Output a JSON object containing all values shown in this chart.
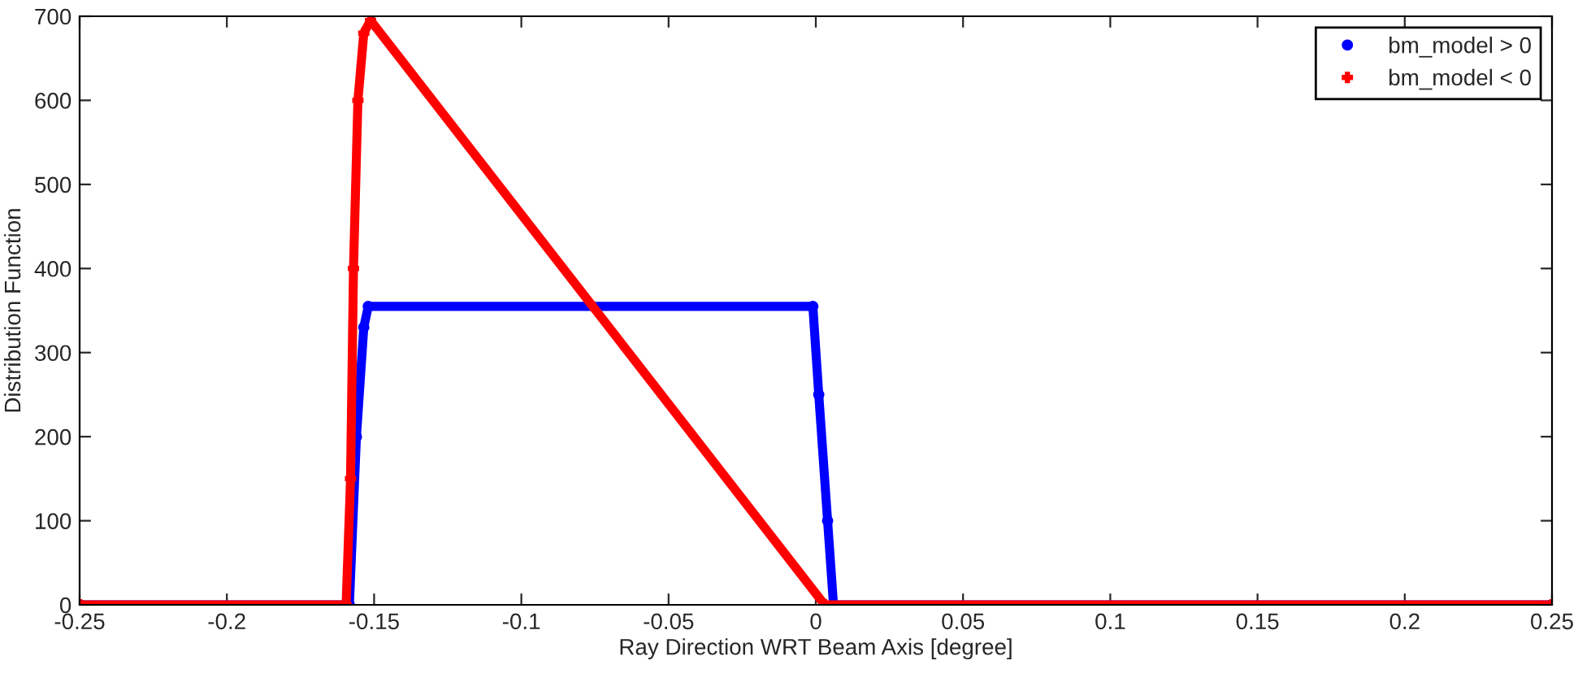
{
  "chart_data": {
    "type": "line",
    "xlabel": "Ray Direction WRT Beam Axis [degree]",
    "ylabel": "Distribution Function",
    "xlim": [
      -0.25,
      0.25
    ],
    "xticks": [
      -0.25,
      -0.2,
      -0.15,
      -0.1,
      -0.05,
      0,
      0.05,
      0.1,
      0.15,
      0.2,
      0.25
    ],
    "ylim": [
      0,
      700
    ],
    "yticks": [
      0,
      100,
      200,
      300,
      400,
      500,
      600,
      700
    ],
    "grid": false,
    "legend": "top right",
    "series": [
      {
        "name": "bm_model > 0",
        "color": "#0000ff",
        "marker": "circle",
        "x": [
          -0.25,
          -0.1584,
          -0.156,
          -0.1535,
          -0.152,
          -0.001,
          0.001,
          0.004,
          0.006,
          0.25
        ],
        "values": [
          0,
          0,
          200,
          330,
          355,
          355,
          250,
          100,
          0,
          0
        ]
      },
      {
        "name": "bm_model < 0",
        "color": "#ff0000",
        "marker": "cross",
        "x": [
          -0.25,
          -0.1595,
          -0.158,
          -0.157,
          -0.1555,
          -0.1535,
          -0.1512,
          0.003,
          0.25
        ],
        "values": [
          0,
          0,
          150,
          400,
          600,
          680,
          695,
          0,
          0
        ]
      }
    ]
  }
}
